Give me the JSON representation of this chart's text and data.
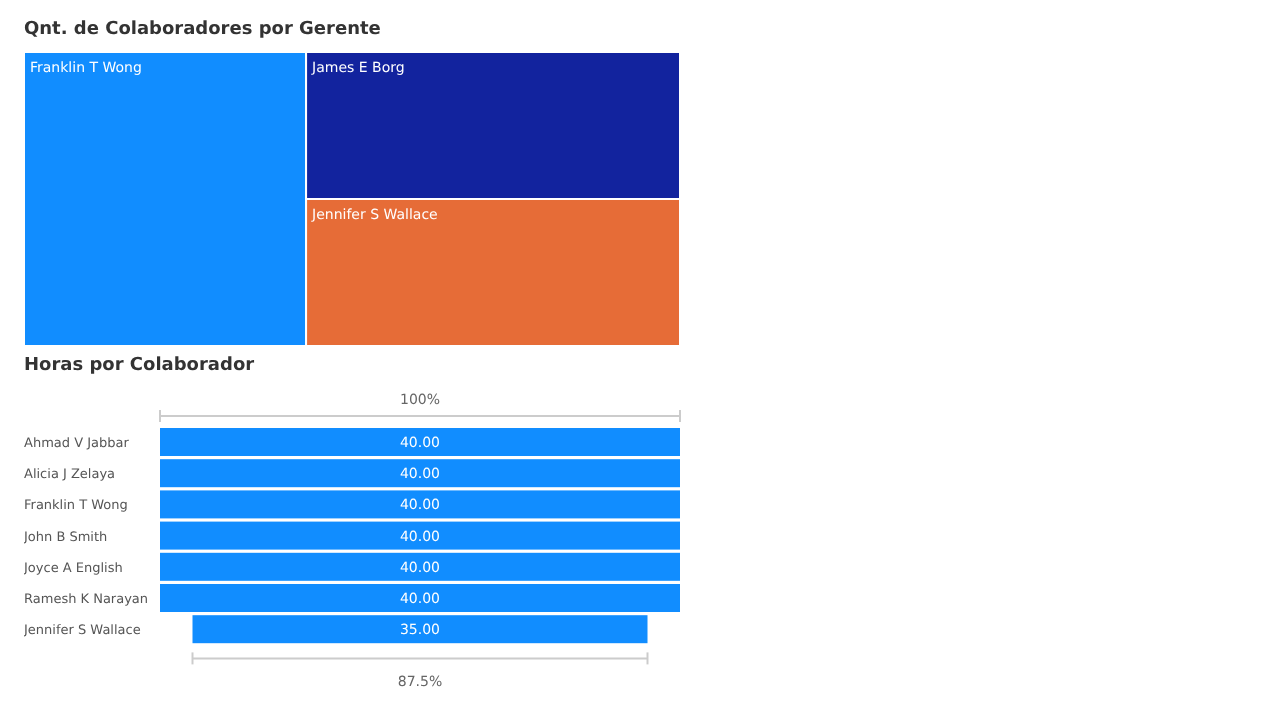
{
  "chart_data": [
    {
      "type": "other",
      "title": "Qnt. de Colaboradores por Gerente",
      "categories": [
        "Franklin T Wong",
        "James E Borg",
        "Jennifer S Wallace"
      ],
      "colors": [
        "#118dff",
        "#12239e",
        "#e66c37"
      ]
    },
    {
      "type": "other",
      "title": "Horas por Colaborador",
      "categories": [
        "Ahmad V Jabbar",
        "Alicia J Zelaya",
        "Franklin T Wong",
        "John B Smith",
        "Joyce A English",
        "Ramesh K Narayan",
        "Jennifer S Wallace"
      ],
      "values": [
        40,
        40,
        40,
        40,
        40,
        40,
        35
      ],
      "value_labels": [
        "40.00",
        "40.00",
        "40.00",
        "40.00",
        "40.00",
        "40.00",
        "35.00"
      ],
      "color": "#118dff",
      "annotations": [
        "100%",
        "87.5%"
      ]
    }
  ]
}
